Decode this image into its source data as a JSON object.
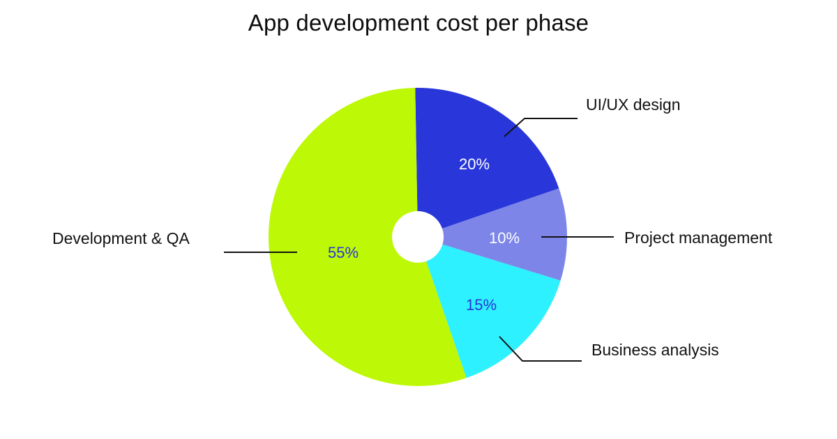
{
  "title": "App development cost per phase",
  "chart_data": {
    "type": "pie",
    "title": "App development cost per phase",
    "donut_hole": true,
    "start_angle_deg": -1,
    "direction": "clockwise",
    "categories": [
      "UI/UX design",
      "Project management",
      "Business analysis",
      "Development & QA"
    ],
    "values": [
      20,
      10,
      15,
      55
    ],
    "unit": "%",
    "colors": [
      "#2936d9",
      "#7d86e8",
      "#2df1fe",
      "#bdf806"
    ],
    "value_label_colors": [
      "#ffffff",
      "#ffffff",
      "#2936d9",
      "#2936d9"
    ],
    "value_labels": [
      "20%",
      "10%",
      "15%",
      "55%"
    ],
    "legend": "none (callout labels with leader lines)"
  },
  "labels": {
    "uiux": "UI/UX design",
    "pm": "Project management",
    "ba": "Business analysis",
    "dev": "Development & QA",
    "uiux_pct": "20%",
    "pm_pct": "10%",
    "ba_pct": "15%",
    "dev_pct": "55%"
  }
}
